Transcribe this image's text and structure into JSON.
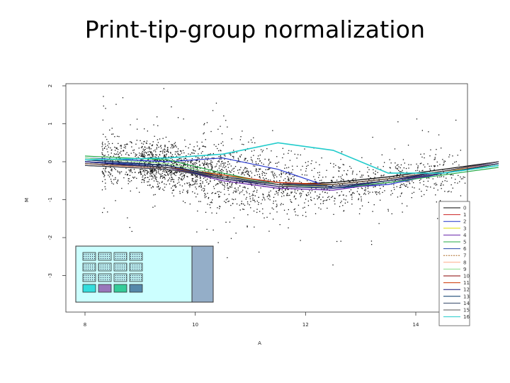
{
  "slide": {
    "title": "Print-tip-group normalization"
  },
  "chart_data": {
    "type": "scatter",
    "title": "Print-tip-group normalization",
    "xlabel": "A",
    "ylabel": "M",
    "xlim": [
      8,
      16.5
    ],
    "ylim": [
      -4,
      2
    ],
    "x_ticks": [
      8,
      10,
      12,
      14
    ],
    "y_ticks": [
      -3,
      -2,
      -1,
      0,
      1,
      2
    ],
    "grid": false,
    "legend_placement": "right",
    "series": [
      {
        "name": "0",
        "color": "#000000",
        "x": [
          8.0,
          9.5,
          10.5,
          11.5,
          12.5,
          13.5,
          14.5,
          15.5
        ],
        "y": [
          0.0,
          -0.15,
          -0.4,
          -0.6,
          -0.55,
          -0.4,
          -0.2,
          0.0
        ]
      },
      {
        "name": "1",
        "color": "#cc2222",
        "x": [
          8.0,
          9.5,
          10.5,
          11.5,
          12.5,
          13.5,
          14.5,
          15.5
        ],
        "y": [
          -0.05,
          -0.15,
          -0.35,
          -0.55,
          -0.6,
          -0.45,
          -0.25,
          0.0
        ]
      },
      {
        "name": "2",
        "color": "#2233cc",
        "x": [
          8.0,
          9.5,
          10.5,
          11.5,
          12.5,
          13.5,
          14.5,
          15.5
        ],
        "y": [
          0.1,
          0.0,
          0.1,
          -0.2,
          -0.7,
          -0.6,
          -0.3,
          0.0
        ]
      },
      {
        "name": "3",
        "color": "#dddd00",
        "x": [
          8.0,
          9.5,
          10.5,
          11.5,
          12.5,
          13.5,
          14.5,
          15.5
        ],
        "y": [
          -0.1,
          -0.2,
          -0.45,
          -0.65,
          -0.6,
          -0.45,
          -0.25,
          -0.1
        ]
      },
      {
        "name": "4",
        "color": "#6622aa",
        "x": [
          8.0,
          9.5,
          10.5,
          11.5,
          12.5,
          13.5,
          14.5,
          15.5
        ],
        "y": [
          -0.05,
          -0.15,
          -0.5,
          -0.7,
          -0.75,
          -0.55,
          -0.3,
          -0.05
        ]
      },
      {
        "name": "5",
        "color": "#22aa44",
        "x": [
          8.0,
          9.5,
          10.5,
          11.5,
          12.5,
          13.5,
          14.5,
          15.5
        ],
        "y": [
          0.15,
          0.05,
          -0.3,
          -0.6,
          -0.7,
          -0.55,
          -0.35,
          -0.15
        ]
      },
      {
        "name": "6",
        "color": "#2244aa",
        "x": [
          8.0,
          9.5,
          10.5,
          11.5,
          12.5,
          13.5,
          14.5,
          15.5
        ],
        "y": [
          0.0,
          -0.1,
          -0.4,
          -0.55,
          -0.65,
          -0.5,
          -0.25,
          0.0
        ]
      },
      {
        "name": "7",
        "color": "#aa6622",
        "x": [
          8.0,
          9.5,
          10.5,
          11.5,
          12.5,
          13.5,
          14.5,
          15.5
        ],
        "y": [
          -0.1,
          -0.2,
          -0.4,
          -0.6,
          -0.65,
          -0.5,
          -0.3,
          -0.05
        ]
      },
      {
        "name": "8",
        "color": "#ffaa88",
        "x": [
          8.0,
          9.5,
          10.5,
          11.5,
          12.5,
          13.5,
          14.5,
          15.5
        ],
        "y": [
          -0.05,
          -0.2,
          -0.45,
          -0.65,
          -0.65,
          -0.5,
          -0.25,
          -0.05
        ]
      },
      {
        "name": "9",
        "color": "#88dd88",
        "x": [
          8.0,
          9.5,
          10.5,
          11.5,
          12.5,
          13.5,
          14.5,
          15.5
        ],
        "y": [
          0.1,
          -0.05,
          -0.35,
          -0.6,
          -0.7,
          -0.5,
          -0.3,
          -0.1
        ]
      },
      {
        "name": "10",
        "color": "#880000",
        "x": [
          8.0,
          9.5,
          10.5,
          11.5,
          12.5,
          13.5,
          14.5,
          15.5
        ],
        "y": [
          0.05,
          -0.1,
          -0.4,
          -0.6,
          -0.65,
          -0.5,
          -0.3,
          -0.05
        ]
      },
      {
        "name": "11",
        "color": "#cc3300",
        "x": [
          8.0,
          9.5,
          10.5,
          11.5,
          12.5,
          13.5,
          14.5,
          15.5
        ],
        "y": [
          -0.05,
          -0.15,
          -0.35,
          -0.55,
          -0.6,
          -0.45,
          -0.25,
          0.0
        ]
      },
      {
        "name": "12",
        "color": "#111177",
        "x": [
          8.0,
          9.5,
          10.5,
          11.5,
          12.5,
          13.5,
          14.5,
          15.5
        ],
        "y": [
          0.0,
          -0.15,
          -0.45,
          -0.65,
          -0.7,
          -0.5,
          -0.25,
          0.0
        ]
      },
      {
        "name": "13",
        "color": "#003366",
        "x": [
          8.0,
          9.5,
          10.5,
          11.5,
          12.5,
          13.5,
          14.5,
          15.5
        ],
        "y": [
          0.05,
          -0.1,
          -0.4,
          -0.6,
          -0.65,
          -0.5,
          -0.3,
          -0.05
        ]
      },
      {
        "name": "14",
        "color": "#334466",
        "x": [
          8.0,
          9.5,
          10.5,
          11.5,
          12.5,
          13.5,
          14.5,
          15.5
        ],
        "y": [
          -0.1,
          -0.2,
          -0.45,
          -0.6,
          -0.65,
          -0.5,
          -0.3,
          -0.1
        ]
      },
      {
        "name": "15",
        "color": "#555555",
        "x": [
          8.0,
          9.5,
          10.5,
          11.5,
          12.5,
          13.5,
          14.5,
          15.5
        ],
        "y": [
          -0.05,
          -0.15,
          -0.4,
          -0.6,
          -0.6,
          -0.45,
          -0.25,
          0.0
        ]
      },
      {
        "name": "16",
        "color": "#22cccc",
        "x": [
          8.0,
          9.5,
          10.5,
          11.5,
          12.5,
          13.5,
          14.5,
          15.5
        ],
        "y": [
          0.05,
          0.1,
          0.2,
          0.5,
          0.3,
          -0.3,
          -0.3,
          -0.1
        ]
      }
    ]
  }
}
